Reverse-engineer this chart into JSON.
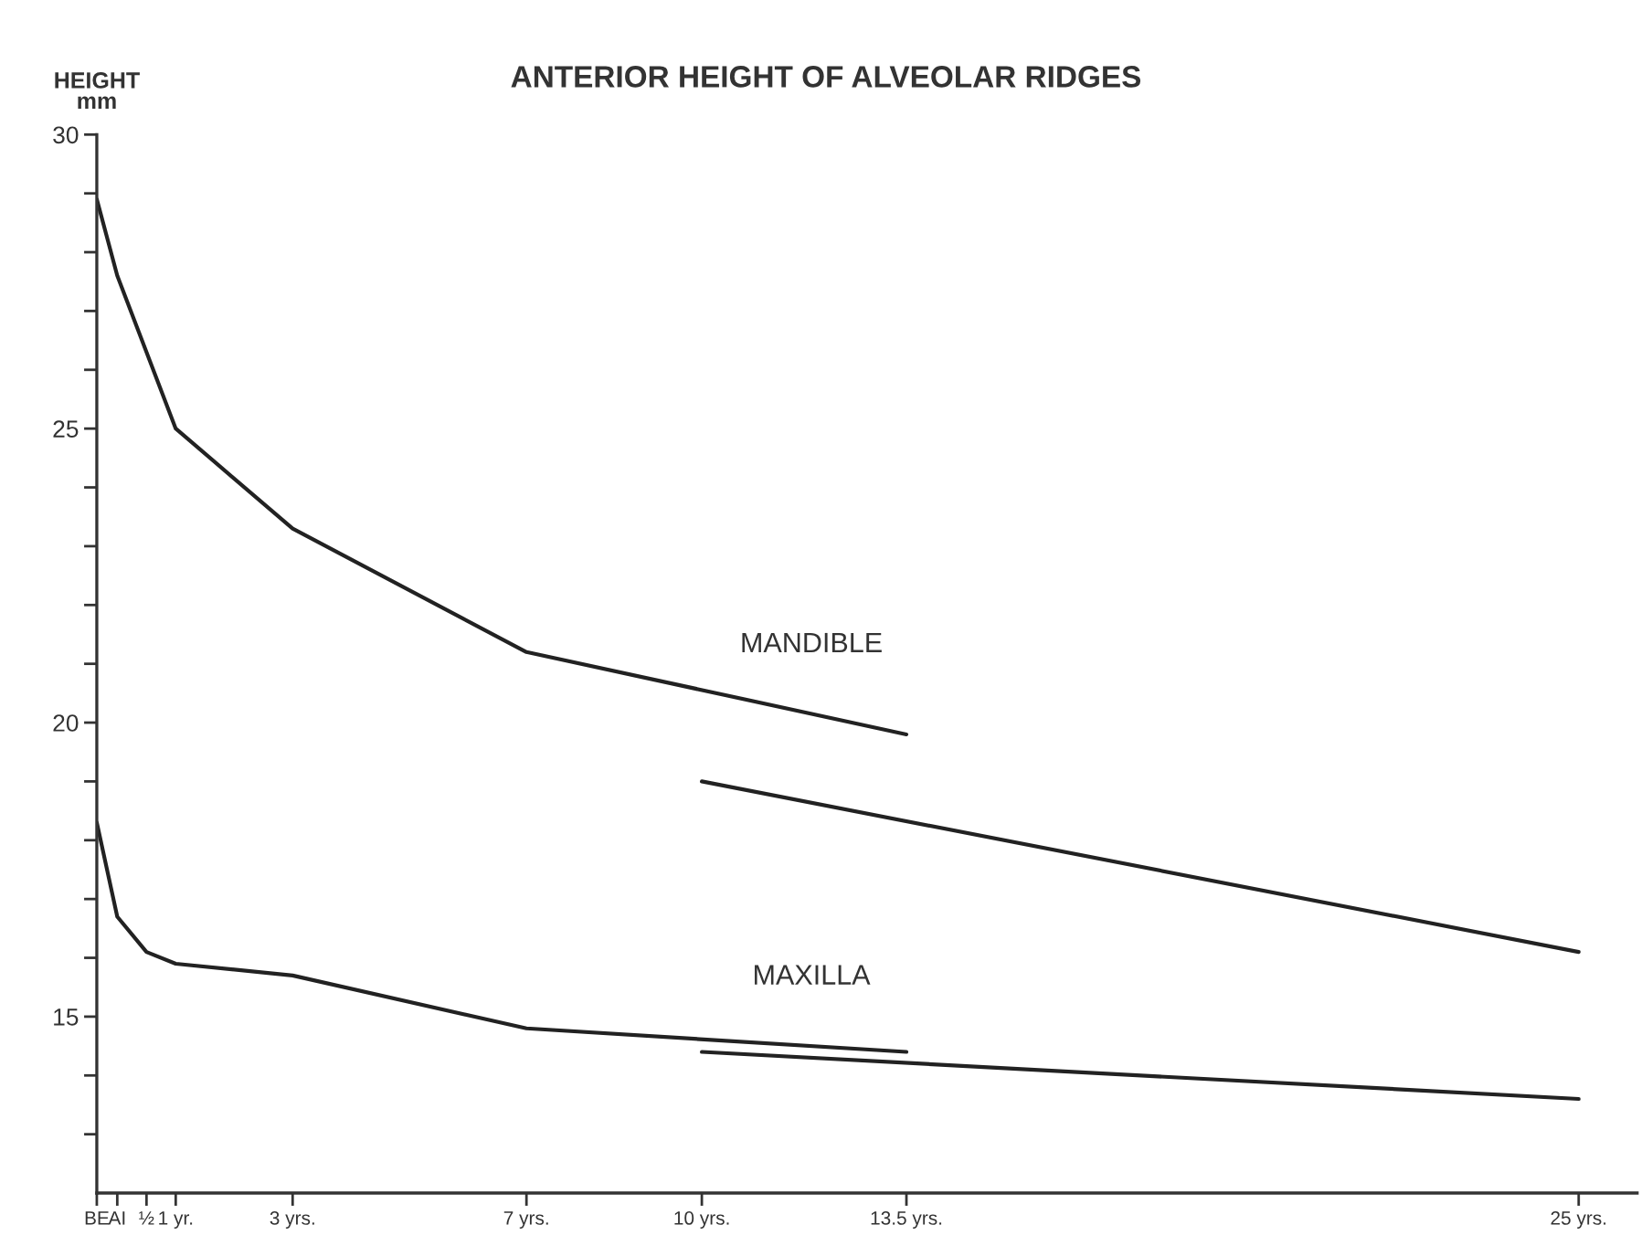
{
  "chart_data": {
    "type": "line",
    "title": "ANTERIOR HEIGHT OF ALVEOLAR RIDGES",
    "ylabel": "HEIGHT\nmm",
    "xlim": [
      -0.35,
      26
    ],
    "ylim": [
      12,
      30
    ],
    "xticks": [
      {
        "value": -0.35,
        "label": "BE"
      },
      {
        "value": 0,
        "label": "AI"
      },
      {
        "value": 0.5,
        "label": "½"
      },
      {
        "value": 1,
        "label": "1 yr."
      },
      {
        "value": 3,
        "label": "3 yrs."
      },
      {
        "value": 7,
        "label": "7 yrs."
      },
      {
        "value": 10,
        "label": "10 yrs."
      },
      {
        "value": 13.5,
        "label": "13.5 yrs."
      },
      {
        "value": 25,
        "label": "25 yrs."
      }
    ],
    "yticks": [
      {
        "value": 13,
        "label": null
      },
      {
        "value": 14,
        "label": null
      },
      15,
      {
        "value": 16,
        "label": null
      },
      {
        "value": 17,
        "label": null
      },
      {
        "value": 18,
        "label": null
      },
      {
        "value": 19,
        "label": null
      },
      20,
      {
        "value": 21,
        "label": null
      },
      {
        "value": 22,
        "label": null
      },
      {
        "value": 23,
        "label": null
      },
      {
        "value": 24,
        "label": null
      },
      25,
      {
        "value": 26,
        "label": null
      },
      {
        "value": 27,
        "label": null
      },
      {
        "value": 28,
        "label": null
      },
      {
        "value": 29,
        "label": null
      },
      30
    ],
    "grid": false,
    "marker": "none",
    "line_style": "solid",
    "series": [
      {
        "name": "MANDIBLE",
        "color": "#222222",
        "x": [
          -0.35,
          0,
          1,
          3,
          7,
          13.5
        ],
        "values": [
          28.9,
          27.6,
          25.0,
          23.3,
          21.2,
          19.8
        ]
      },
      {
        "color": "#222222",
        "x": [
          10,
          25
        ],
        "values": [
          19.0,
          16.1
        ]
      },
      {
        "name": "MAXILLA",
        "color": "#222222",
        "x": [
          -0.35,
          0,
          0.5,
          1,
          3,
          7,
          13.5
        ],
        "values": [
          18.3,
          16.7,
          16.1,
          15.9,
          15.7,
          14.8,
          14.4
        ]
      },
      {
        "color": "#222222",
        "x": [
          10,
          25
        ],
        "values": [
          14.4,
          13.6
        ]
      }
    ]
  }
}
